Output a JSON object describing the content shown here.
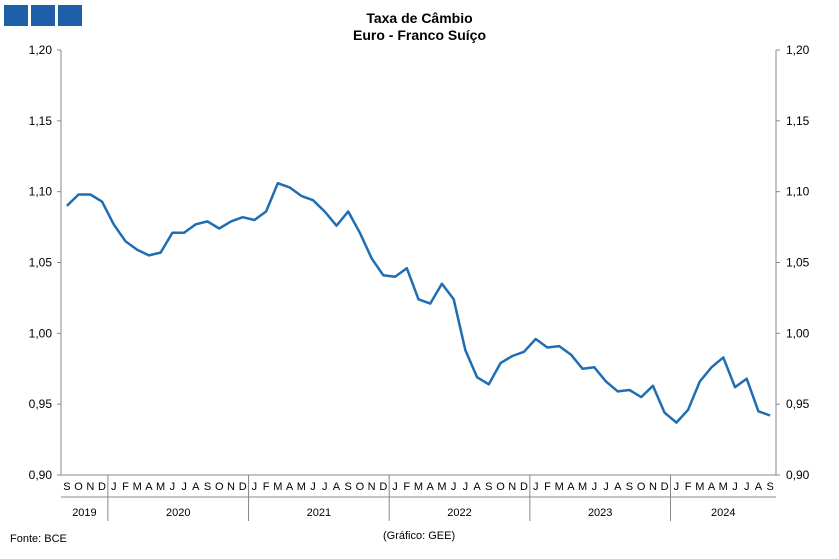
{
  "logo": {
    "icon": "logo-squares-icon",
    "color": "#1f5fa8"
  },
  "chart_data": {
    "type": "line",
    "title": "Taxa de Câmbio",
    "subtitle": "Euro - Franco Suíço",
    "ylim": [
      0.9,
      1.2
    ],
    "y_ticks": [
      "1,20",
      "1,15",
      "1,10",
      "1,05",
      "1,00",
      "0,95",
      "0,90"
    ],
    "y_tick_values": [
      1.2,
      1.15,
      1.1,
      1.05,
      1.0,
      0.95,
      0.9
    ],
    "grid": false,
    "line_color": "#1f6db3",
    "months": [
      "S",
      "O",
      "N",
      "D",
      "J",
      "F",
      "M",
      "A",
      "M",
      "J",
      "J",
      "A",
      "S",
      "O",
      "N",
      "D",
      "J",
      "F",
      "M",
      "A",
      "M",
      "J",
      "J",
      "A",
      "S",
      "O",
      "N",
      "D",
      "J",
      "F",
      "M",
      "A",
      "M",
      "J",
      "J",
      "A",
      "S",
      "O",
      "N",
      "D",
      "J",
      "F",
      "M",
      "A",
      "M",
      "J",
      "J",
      "A",
      "S",
      "O",
      "N",
      "D",
      "J",
      "F",
      "M",
      "A",
      "M",
      "J",
      "J",
      "A",
      "S"
    ],
    "years": [
      {
        "label": "2019",
        "start": 0,
        "count": 4
      },
      {
        "label": "2020",
        "start": 4,
        "count": 12
      },
      {
        "label": "2021",
        "start": 16,
        "count": 12
      },
      {
        "label": "2022",
        "start": 28,
        "count": 12
      },
      {
        "label": "2023",
        "start": 40,
        "count": 12
      },
      {
        "label": "2024",
        "start": 52,
        "count": 9
      }
    ],
    "series": [
      {
        "values": [
          1.09,
          1.098,
          1.098,
          1.093,
          1.077,
          1.065,
          1.059,
          1.055,
          1.057,
          1.071,
          1.071,
          1.077,
          1.079,
          1.074,
          1.079,
          1.082,
          1.08,
          1.086,
          1.106,
          1.103,
          1.097,
          1.094,
          1.086,
          1.076,
          1.086,
          1.071,
          1.053,
          1.041,
          1.04,
          1.046,
          1.024,
          1.021,
          1.035,
          1.024,
          0.988,
          0.969,
          0.964,
          0.979,
          0.984,
          0.987,
          0.996,
          0.99,
          0.991,
          0.985,
          0.975,
          0.976,
          0.966,
          0.959,
          0.96,
          0.955,
          0.963,
          0.944,
          0.937,
          0.946,
          0.966,
          0.976,
          0.983,
          0.962,
          0.968,
          0.945,
          0.942
        ]
      }
    ]
  },
  "footer": {
    "source": "Fonte: BCE",
    "credit": "(Gráfico: GEE)"
  }
}
